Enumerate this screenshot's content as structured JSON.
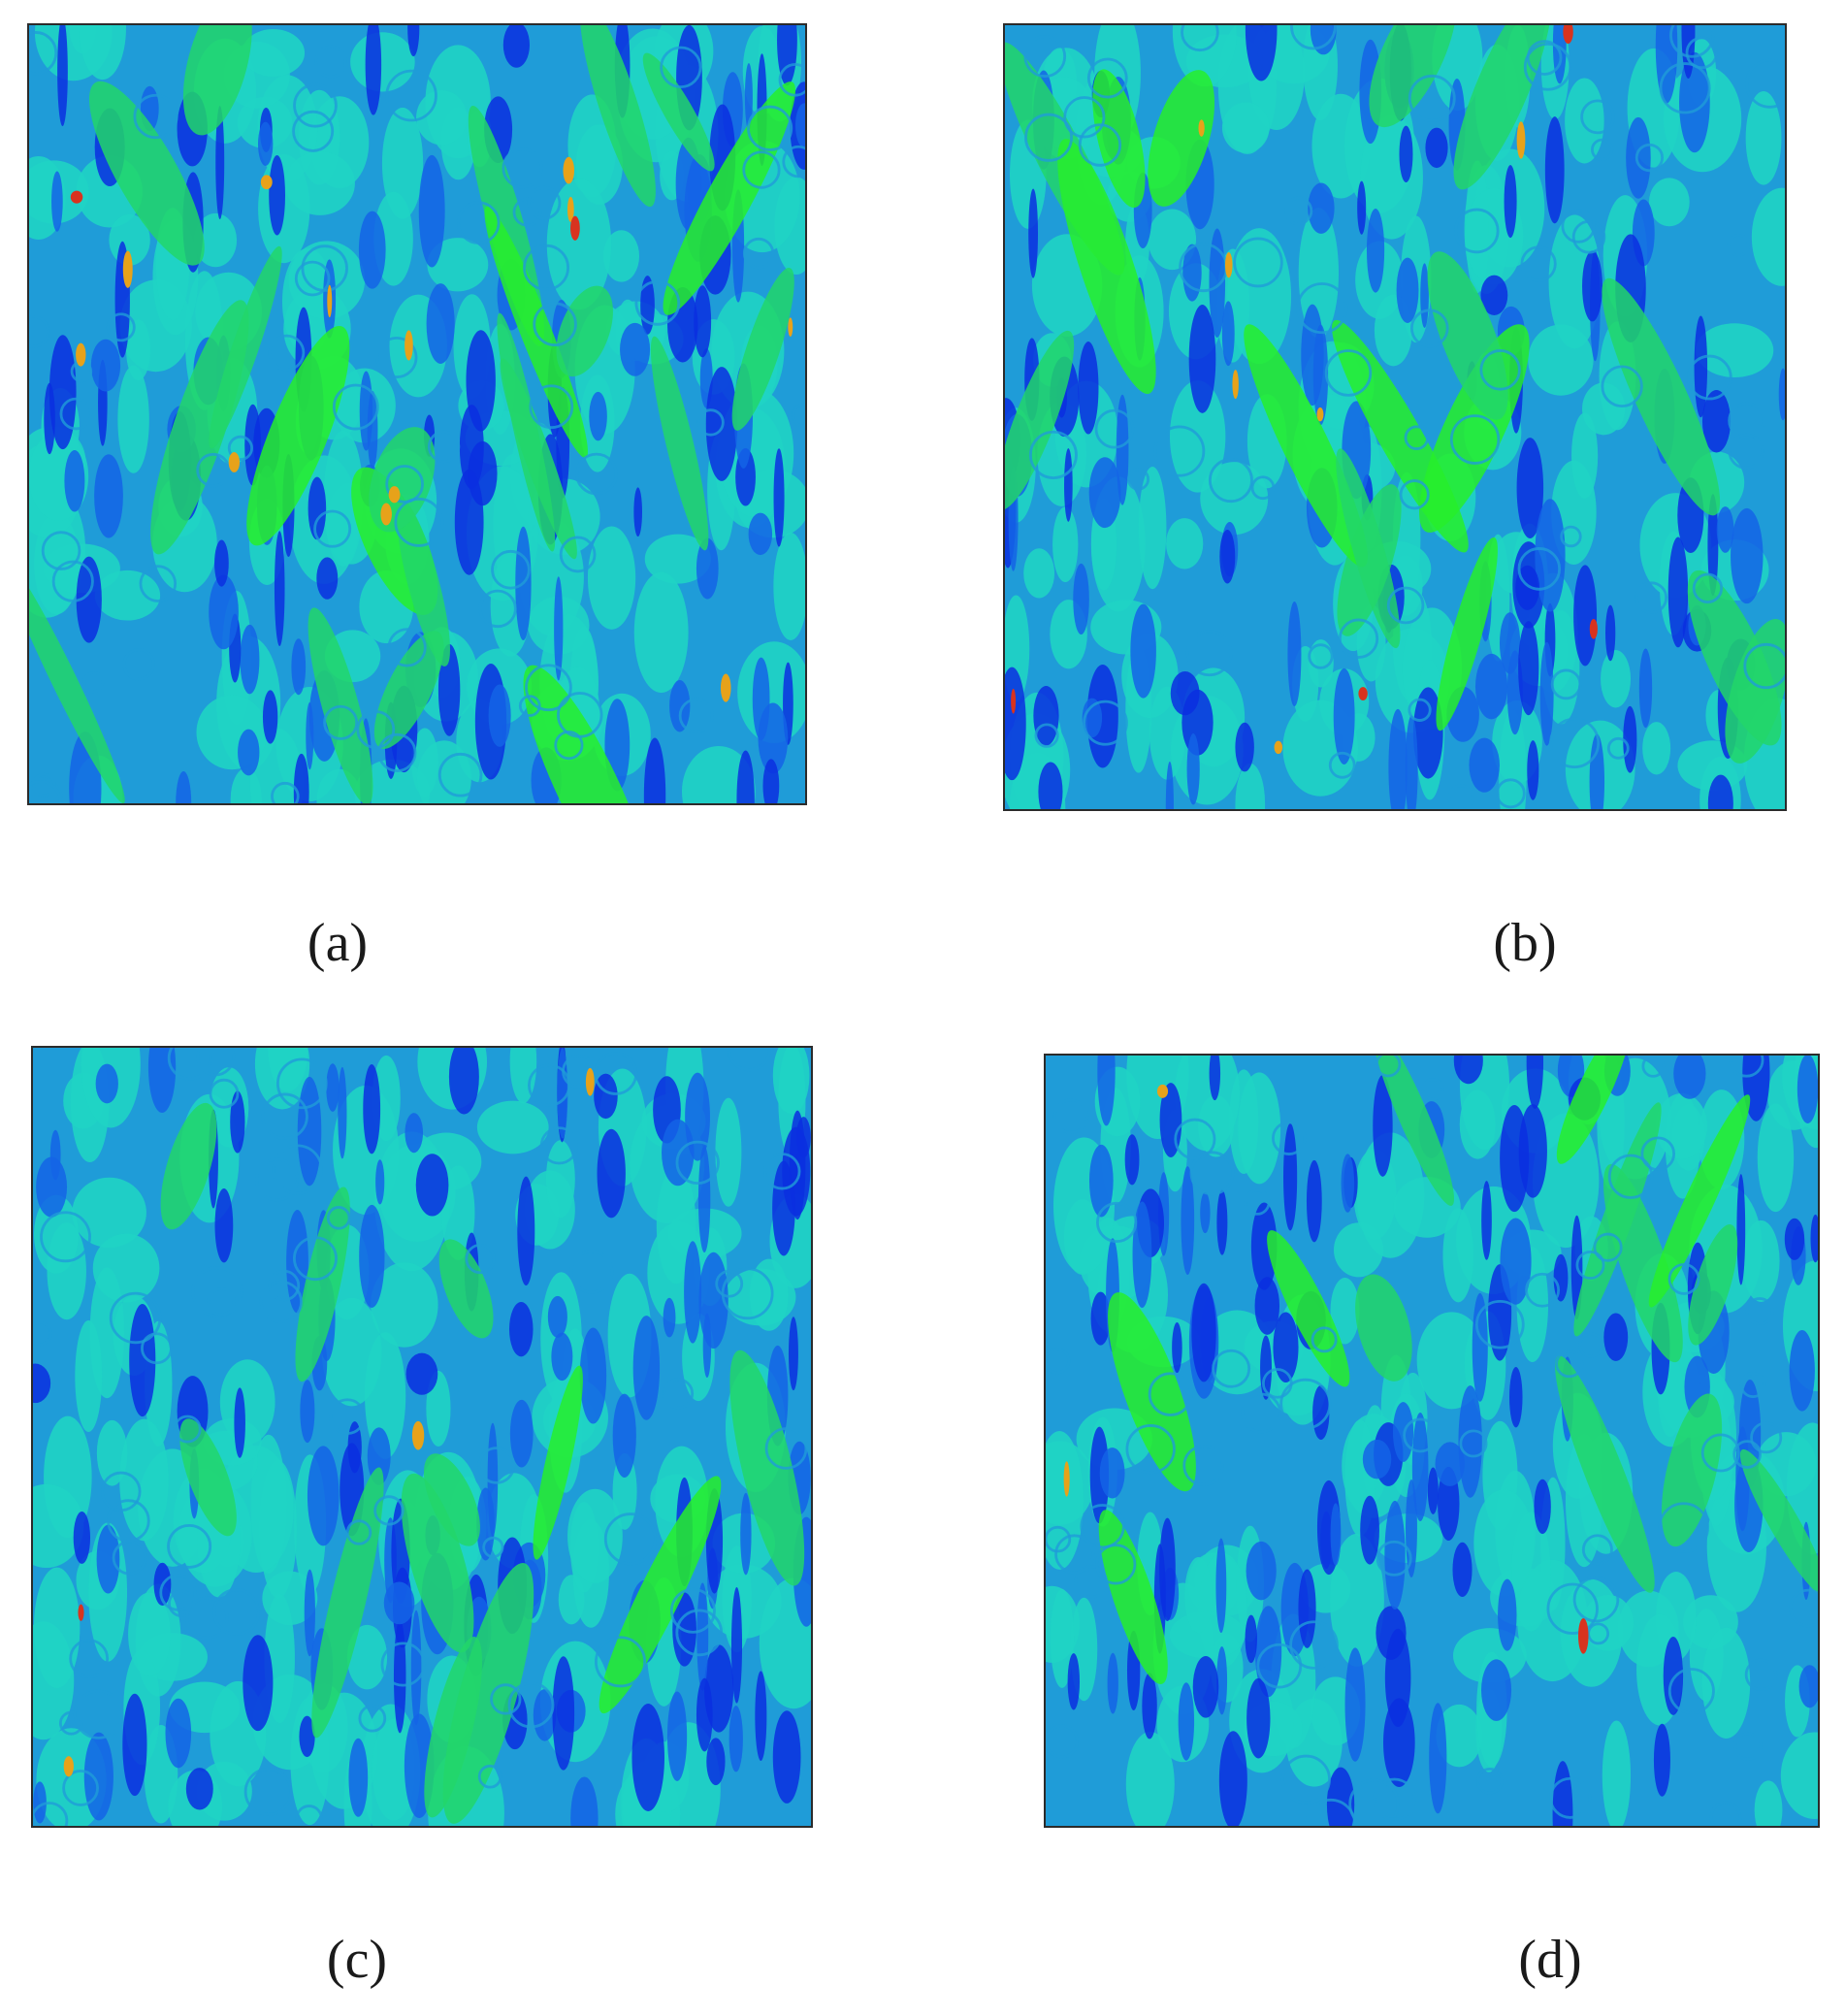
{
  "figure": {
    "panels": [
      {
        "id": "a",
        "caption": "(a)",
        "palette": [
          "#1f9cd8",
          "#1fd4c4",
          "#22d66a",
          "#1464e6",
          "#0a2fe0",
          "#27ee2a",
          "#e7a21a",
          "#d8331f"
        ]
      },
      {
        "id": "b",
        "caption": "(b)",
        "palette": [
          "#1f9cd8",
          "#1fd4c4",
          "#22d66a",
          "#1464e6",
          "#0a2fe0",
          "#27ee2a",
          "#e7a21a",
          "#d8331f"
        ]
      },
      {
        "id": "c",
        "caption": "(c)",
        "palette": [
          "#1f9cd8",
          "#1fd4c4",
          "#22d66a",
          "#1464e6",
          "#0a2fe0",
          "#27ee2a",
          "#e7a21a",
          "#d8331f"
        ]
      },
      {
        "id": "d",
        "caption": "(d)",
        "palette": [
          "#1f9cd8",
          "#1fd4c4",
          "#22d66a",
          "#1464e6",
          "#0a2fe0",
          "#27ee2a",
          "#e7a21a",
          "#d8331f"
        ]
      }
    ]
  }
}
